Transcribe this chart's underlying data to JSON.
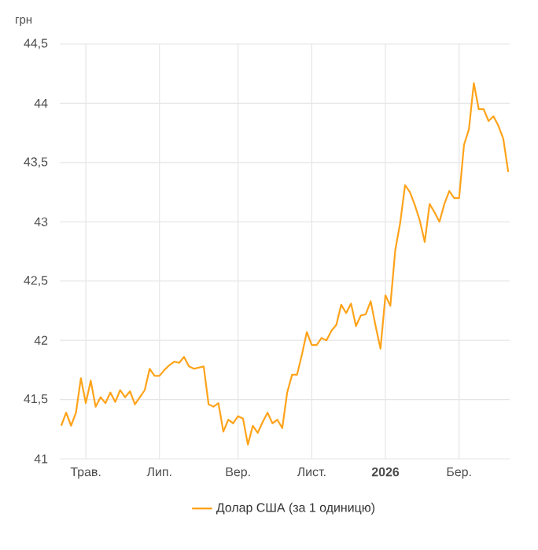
{
  "chart_data": {
    "type": "line",
    "ylabel": "грн",
    "ylim": [
      41,
      44.5
    ],
    "yticks": [
      41,
      {
        "value": 41.5,
        "label": "41,5"
      },
      42,
      {
        "value": 42.5,
        "label": "42,5"
      },
      43,
      {
        "value": 43.5,
        "label": "43,5"
      },
      44,
      {
        "value": 44.5,
        "label": "44,5"
      }
    ],
    "grid": true,
    "legend": "bottom",
    "marker": "none",
    "line_style": "solid",
    "categories": [
      null,
      null,
      null,
      null,
      null,
      "Трав.",
      null,
      null,
      null,
      null,
      null,
      null,
      null,
      null,
      null,
      null,
      null,
      null,
      null,
      null,
      "Лип.",
      null,
      null,
      null,
      null,
      null,
      null,
      null,
      null,
      null,
      null,
      null,
      null,
      null,
      null,
      null,
      "Вер.",
      null,
      null,
      null,
      null,
      null,
      null,
      null,
      null,
      null,
      null,
      null,
      null,
      null,
      null,
      "Лист.",
      null,
      null,
      null,
      null,
      null,
      null,
      null,
      null,
      null,
      null,
      null,
      null,
      null,
      null,
      "**2026**",
      null,
      null,
      null,
      null,
      null,
      null,
      null,
      null,
      null,
      null,
      null,
      null,
      null,
      null,
      "Бер.",
      null,
      null,
      null,
      null,
      null,
      null,
      null,
      null,
      null,
      null
    ],
    "series": [
      {
        "name": "Долар США (за 1 одиницю)",
        "color": "#ffa31a",
        "values": [
          41.28,
          41.39,
          41.28,
          41.39,
          41.68,
          41.47,
          41.66,
          41.44,
          41.52,
          41.47,
          41.56,
          41.48,
          41.58,
          41.52,
          41.57,
          41.46,
          41.52,
          41.58,
          41.76,
          41.7,
          41.7,
          41.75,
          41.79,
          41.82,
          41.81,
          41.86,
          41.78,
          41.76,
          41.77,
          41.78,
          41.46,
          41.44,
          41.47,
          41.23,
          41.33,
          41.3,
          41.36,
          41.34,
          41.12,
          41.28,
          41.22,
          41.31,
          41.39,
          41.3,
          41.33,
          41.26,
          41.56,
          41.71,
          41.71,
          41.88,
          42.07,
          41.96,
          41.96,
          42.02,
          42.0,
          42.08,
          42.13,
          42.3,
          42.23,
          42.31,
          42.12,
          42.21,
          42.22,
          42.33,
          42.12,
          41.93,
          42.38,
          42.29,
          42.76,
          42.99,
          43.31,
          43.25,
          43.14,
          43.01,
          42.83,
          43.15,
          43.08,
          43.0,
          43.15,
          43.26,
          43.2,
          43.2,
          43.65,
          43.78,
          44.17,
          43.95,
          43.95,
          43.85,
          43.89,
          43.81,
          43.7,
          43.42
        ]
      }
    ]
  }
}
